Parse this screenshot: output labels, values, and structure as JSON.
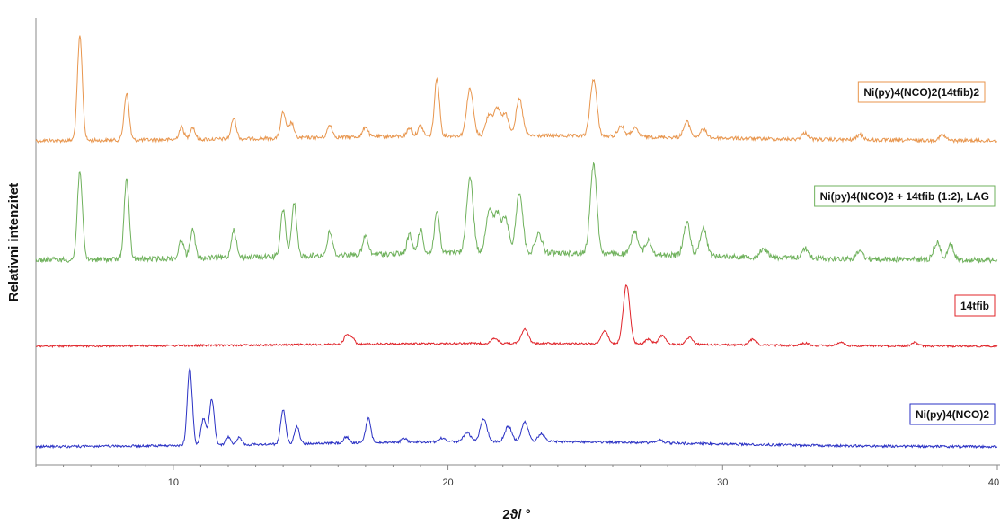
{
  "chart_data": {
    "type": "line",
    "xlabel": "2ϑ/ °",
    "ylabel": "Relativni intenzitet",
    "xlim": [
      5,
      40
    ],
    "xticks": [
      10,
      20,
      30,
      40
    ],
    "grid": false,
    "y_units": "relative intensity (arbitrary), traces vertically offset",
    "series": [
      {
        "name": "Ni(py)4(NCO)2(14tfib)2",
        "color": "#e8964e",
        "baseline": 0,
        "peaks": [
          [
            6.6,
            1.0
          ],
          [
            8.3,
            0.45
          ],
          [
            10.3,
            0.12
          ],
          [
            10.7,
            0.12
          ],
          [
            12.2,
            0.2
          ],
          [
            14.0,
            0.25
          ],
          [
            14.3,
            0.15
          ],
          [
            15.7,
            0.12
          ],
          [
            17.0,
            0.1
          ],
          [
            18.6,
            0.08
          ],
          [
            19.0,
            0.1
          ],
          [
            19.6,
            0.55
          ],
          [
            20.8,
            0.45
          ],
          [
            21.5,
            0.2
          ],
          [
            21.8,
            0.25
          ],
          [
            22.1,
            0.2
          ],
          [
            22.6,
            0.35
          ],
          [
            25.3,
            0.55
          ],
          [
            26.3,
            0.1
          ],
          [
            26.8,
            0.08
          ],
          [
            28.7,
            0.15
          ],
          [
            29.3,
            0.08
          ],
          [
            33.0,
            0.06
          ],
          [
            35.0,
            0.05
          ],
          [
            38.0,
            0.05
          ]
        ]
      },
      {
        "name": "Ni(py)4(NCO)2 + 14tfib (1:2), LAG",
        "color": "#6fb15c",
        "baseline": 0,
        "peaks": [
          [
            6.6,
            0.95
          ],
          [
            8.3,
            0.85
          ],
          [
            10.3,
            0.2
          ],
          [
            10.7,
            0.3
          ],
          [
            12.2,
            0.3
          ],
          [
            14.0,
            0.5
          ],
          [
            14.4,
            0.55
          ],
          [
            15.7,
            0.25
          ],
          [
            17.0,
            0.2
          ],
          [
            18.6,
            0.2
          ],
          [
            19.0,
            0.25
          ],
          [
            19.6,
            0.45
          ],
          [
            20.8,
            0.8
          ],
          [
            21.5,
            0.45
          ],
          [
            21.8,
            0.4
          ],
          [
            22.1,
            0.35
          ],
          [
            22.6,
            0.65
          ],
          [
            23.3,
            0.2
          ],
          [
            25.3,
            0.95
          ],
          [
            26.8,
            0.25
          ],
          [
            27.3,
            0.15
          ],
          [
            28.7,
            0.35
          ],
          [
            29.3,
            0.3
          ],
          [
            31.5,
            0.1
          ],
          [
            33.0,
            0.1
          ],
          [
            35.0,
            0.08
          ],
          [
            37.8,
            0.18
          ],
          [
            38.3,
            0.15
          ]
        ]
      },
      {
        "name": "14tfib",
        "color": "#e0242a",
        "baseline": 0,
        "peaks": [
          [
            16.3,
            0.15
          ],
          [
            16.5,
            0.12
          ],
          [
            21.7,
            0.08
          ],
          [
            22.8,
            0.25
          ],
          [
            25.7,
            0.22
          ],
          [
            26.5,
            1.0
          ],
          [
            27.3,
            0.08
          ],
          [
            27.8,
            0.15
          ],
          [
            28.8,
            0.12
          ],
          [
            31.1,
            0.1
          ],
          [
            33.0,
            0.04
          ],
          [
            34.3,
            0.06
          ],
          [
            37.0,
            0.06
          ]
        ]
      },
      {
        "name": "Ni(py)4(NCO)2",
        "color": "#2a31c4",
        "baseline": 0,
        "peaks": [
          [
            10.6,
            1.0
          ],
          [
            11.1,
            0.35
          ],
          [
            11.4,
            0.6
          ],
          [
            12.0,
            0.1
          ],
          [
            12.4,
            0.1
          ],
          [
            14.0,
            0.45
          ],
          [
            14.5,
            0.22
          ],
          [
            16.3,
            0.08
          ],
          [
            17.1,
            0.32
          ],
          [
            18.4,
            0.05
          ],
          [
            19.8,
            0.05
          ],
          [
            20.7,
            0.12
          ],
          [
            21.3,
            0.3
          ],
          [
            22.2,
            0.2
          ],
          [
            22.8,
            0.25
          ],
          [
            23.4,
            0.1
          ],
          [
            27.7,
            0.04
          ]
        ]
      }
    ]
  }
}
